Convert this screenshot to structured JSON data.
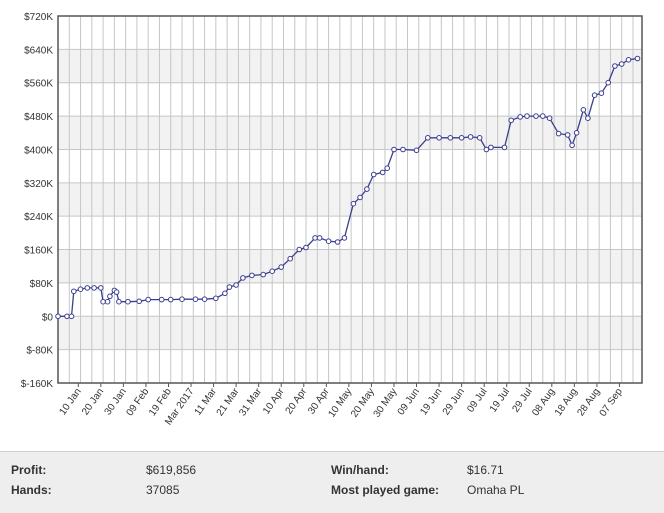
{
  "chart_data": {
    "type": "line",
    "title": "",
    "xlabel": "",
    "ylabel": "",
    "grid": true,
    "legend": "none",
    "line_color": "#3b3f8f",
    "marker_fill": "#ffffff",
    "band_color": "#f2f2f2",
    "ylim": [
      -160000,
      720000
    ],
    "y_ticks": [
      {
        "value": -160000,
        "label": "$-160K"
      },
      {
        "value": -80000,
        "label": "$-80K"
      },
      {
        "value": 0,
        "label": "$0"
      },
      {
        "value": 80000,
        "label": "$80K"
      },
      {
        "value": 160000,
        "label": "$160K"
      },
      {
        "value": 240000,
        "label": "$240K"
      },
      {
        "value": 320000,
        "label": "$320K"
      },
      {
        "value": 400000,
        "label": "$400K"
      },
      {
        "value": 480000,
        "label": "$480K"
      },
      {
        "value": 560000,
        "label": "$560K"
      },
      {
        "value": 640000,
        "label": "$640K"
      },
      {
        "value": 720000,
        "label": "$720K"
      }
    ],
    "xlim": [
      "2017-01-01",
      "2017-09-17"
    ],
    "x_ticks": [
      {
        "date": "2017-01-10",
        "label": "10 Jan"
      },
      {
        "date": "2017-01-20",
        "label": "20 Jan"
      },
      {
        "date": "2017-01-30",
        "label": "30 Jan"
      },
      {
        "date": "2017-02-09",
        "label": "09 Feb"
      },
      {
        "date": "2017-02-19",
        "label": "19 Feb"
      },
      {
        "date": "2017-03-01",
        "label": "Mar 2017"
      },
      {
        "date": "2017-03-11",
        "label": "11 Mar"
      },
      {
        "date": "2017-03-21",
        "label": "21 Mar"
      },
      {
        "date": "2017-03-31",
        "label": "31 Mar"
      },
      {
        "date": "2017-04-10",
        "label": "10 Apr"
      },
      {
        "date": "2017-04-20",
        "label": "20 Apr"
      },
      {
        "date": "2017-04-30",
        "label": "30 Apr"
      },
      {
        "date": "2017-05-10",
        "label": "10 May"
      },
      {
        "date": "2017-05-20",
        "label": "20 May"
      },
      {
        "date": "2017-05-30",
        "label": "30 May"
      },
      {
        "date": "2017-06-09",
        "label": "09 Jun"
      },
      {
        "date": "2017-06-19",
        "label": "19 Jun"
      },
      {
        "date": "2017-06-29",
        "label": "29 Jun"
      },
      {
        "date": "2017-07-09",
        "label": "09 Jul"
      },
      {
        "date": "2017-07-19",
        "label": "19 Jul"
      },
      {
        "date": "2017-07-29",
        "label": "29 Jul"
      },
      {
        "date": "2017-08-08",
        "label": "08 Aug"
      },
      {
        "date": "2017-08-18",
        "label": "18 Aug"
      },
      {
        "date": "2017-08-28",
        "label": "28 Aug"
      },
      {
        "date": "2017-09-07",
        "label": "07 Sep"
      }
    ],
    "series": [
      {
        "points": [
          {
            "date": "2017-01-01",
            "value": 0
          },
          {
            "date": "2017-01-05",
            "value": 0
          },
          {
            "date": "2017-01-07",
            "value": 0
          },
          {
            "date": "2017-01-08",
            "value": 60000
          },
          {
            "date": "2017-01-11",
            "value": 65000
          },
          {
            "date": "2017-01-14",
            "value": 68000
          },
          {
            "date": "2017-01-17",
            "value": 68000
          },
          {
            "date": "2017-01-20",
            "value": 68000
          },
          {
            "date": "2017-01-21",
            "value": 35000
          },
          {
            "date": "2017-01-23",
            "value": 35000
          },
          {
            "date": "2017-01-24",
            "value": 48000
          },
          {
            "date": "2017-01-26",
            "value": 62000
          },
          {
            "date": "2017-01-27",
            "value": 58000
          },
          {
            "date": "2017-01-28",
            "value": 35000
          },
          {
            "date": "2017-02-01",
            "value": 35000
          },
          {
            "date": "2017-02-06",
            "value": 36000
          },
          {
            "date": "2017-02-10",
            "value": 40000
          },
          {
            "date": "2017-02-16",
            "value": 40000
          },
          {
            "date": "2017-02-20",
            "value": 40000
          },
          {
            "date": "2017-02-25",
            "value": 41000
          },
          {
            "date": "2017-03-03",
            "value": 41000
          },
          {
            "date": "2017-03-07",
            "value": 41000
          },
          {
            "date": "2017-03-12",
            "value": 43000
          },
          {
            "date": "2017-03-16",
            "value": 55000
          },
          {
            "date": "2017-03-18",
            "value": 70000
          },
          {
            "date": "2017-03-21",
            "value": 75000
          },
          {
            "date": "2017-03-24",
            "value": 92000
          },
          {
            "date": "2017-03-28",
            "value": 98000
          },
          {
            "date": "2017-04-02",
            "value": 100000
          },
          {
            "date": "2017-04-06",
            "value": 108000
          },
          {
            "date": "2017-04-10",
            "value": 118000
          },
          {
            "date": "2017-04-14",
            "value": 138000
          },
          {
            "date": "2017-04-18",
            "value": 160000
          },
          {
            "date": "2017-04-21",
            "value": 165000
          },
          {
            "date": "2017-04-25",
            "value": 188000
          },
          {
            "date": "2017-04-27",
            "value": 188000
          },
          {
            "date": "2017-05-01",
            "value": 180000
          },
          {
            "date": "2017-05-05",
            "value": 178000
          },
          {
            "date": "2017-05-08",
            "value": 188000
          },
          {
            "date": "2017-05-12",
            "value": 270000
          },
          {
            "date": "2017-05-15",
            "value": 285000
          },
          {
            "date": "2017-05-18",
            "value": 305000
          },
          {
            "date": "2017-05-21",
            "value": 340000
          },
          {
            "date": "2017-05-25",
            "value": 345000
          },
          {
            "date": "2017-05-27",
            "value": 355000
          },
          {
            "date": "2017-05-30",
            "value": 400000
          },
          {
            "date": "2017-06-03",
            "value": 400000
          },
          {
            "date": "2017-06-09",
            "value": 398000
          },
          {
            "date": "2017-06-14",
            "value": 428000
          },
          {
            "date": "2017-06-19",
            "value": 428000
          },
          {
            "date": "2017-06-24",
            "value": 428000
          },
          {
            "date": "2017-06-29",
            "value": 428000
          },
          {
            "date": "2017-07-03",
            "value": 430000
          },
          {
            "date": "2017-07-07",
            "value": 428000
          },
          {
            "date": "2017-07-10",
            "value": 400000
          },
          {
            "date": "2017-07-12",
            "value": 405000
          },
          {
            "date": "2017-07-18",
            "value": 405000
          },
          {
            "date": "2017-07-21",
            "value": 470000
          },
          {
            "date": "2017-07-25",
            "value": 478000
          },
          {
            "date": "2017-07-28",
            "value": 480000
          },
          {
            "date": "2017-08-01",
            "value": 480000
          },
          {
            "date": "2017-08-04",
            "value": 480000
          },
          {
            "date": "2017-08-07",
            "value": 475000
          },
          {
            "date": "2017-08-11",
            "value": 438000
          },
          {
            "date": "2017-08-15",
            "value": 435000
          },
          {
            "date": "2017-08-17",
            "value": 410000
          },
          {
            "date": "2017-08-19",
            "value": 440000
          },
          {
            "date": "2017-08-22",
            "value": 495000
          },
          {
            "date": "2017-08-24",
            "value": 475000
          },
          {
            "date": "2017-08-27",
            "value": 530000
          },
          {
            "date": "2017-08-30",
            "value": 535000
          },
          {
            "date": "2017-09-02",
            "value": 560000
          },
          {
            "date": "2017-09-05",
            "value": 600000
          },
          {
            "date": "2017-09-08",
            "value": 605000
          },
          {
            "date": "2017-09-11",
            "value": 615000
          },
          {
            "date": "2017-09-15",
            "value": 618000
          }
        ]
      }
    ]
  },
  "stats": {
    "profit_label": "Profit:",
    "profit_value": "$619,856",
    "hands_label": "Hands:",
    "hands_value": "37085",
    "winhand_label": "Win/hand:",
    "winhand_value": "$16.71",
    "game_label": "Most played game:",
    "game_value": "Omaha PL"
  }
}
